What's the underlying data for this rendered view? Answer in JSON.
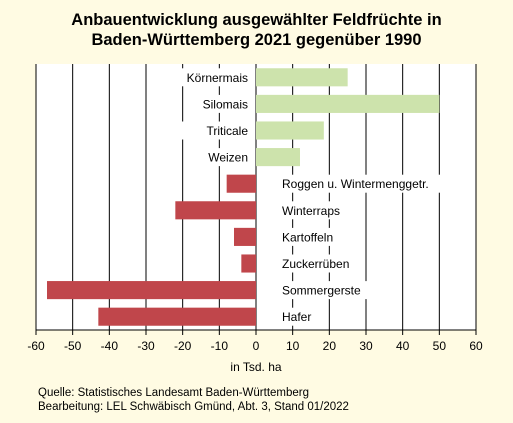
{
  "chart_data": {
    "type": "bar",
    "orientation": "horizontal",
    "title": [
      "Anbauentwicklung ausgewählter Feldfrüchte in",
      "Baden-Württemberg 2021 gegenüber 1990"
    ],
    "xlabel": "in Tsd. ha",
    "ylabel": "",
    "xlim": [
      -60,
      60
    ],
    "xticks": [
      -60,
      -50,
      -40,
      -30,
      -20,
      -10,
      0,
      10,
      20,
      30,
      40,
      50,
      60
    ],
    "grid": "vertical",
    "legend": "none",
    "categories": [
      "Körnermais",
      "Silomais",
      "Triticale",
      "Weizen",
      "Roggen u. Wintermenggetr.",
      "Winterraps",
      "Kartoffeln",
      "Zuckerrüben",
      "Sommergerste",
      "Hafer"
    ],
    "values": [
      25,
      50,
      18.5,
      12,
      -8,
      -22,
      -6,
      -4,
      -57,
      -43
    ],
    "colors": {
      "positive": "#cde3ac",
      "negative": "#c0464b",
      "label_box": "#ffffff"
    }
  },
  "footer": {
    "source": "Quelle: Statistisches Landesamt Baden-Württemberg",
    "edit": "Bearbeitung: LEL Schwäbisch Gmünd, Abt. 3, Stand 01/2022"
  }
}
